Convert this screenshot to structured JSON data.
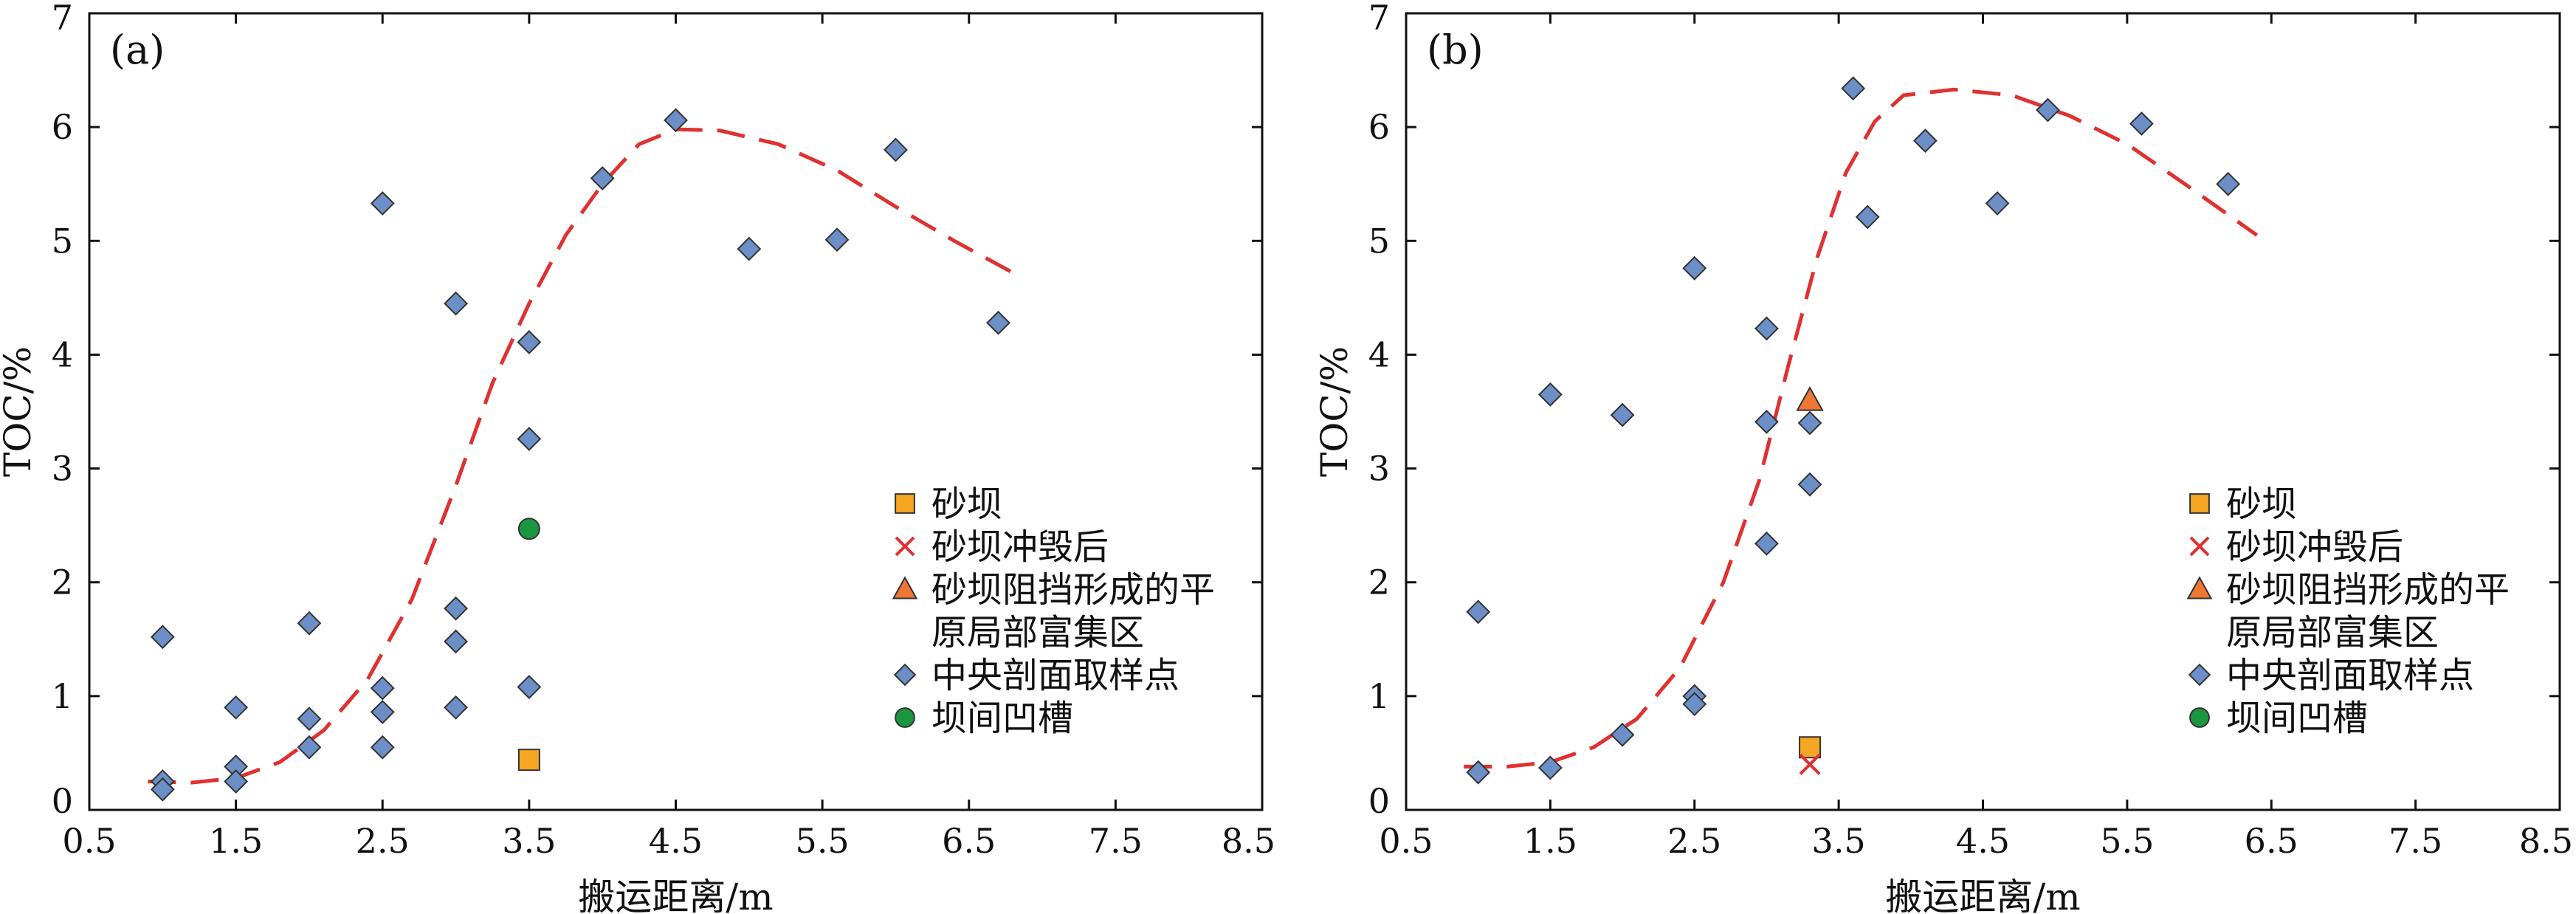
{
  "chart_data": [
    {
      "type": "scatter",
      "panel_label": "(a)",
      "xlabel": "搬运距离/m",
      "ylabel": "TOC/%",
      "xlim": [
        0.5,
        8.5
      ],
      "ylim": [
        0,
        7
      ],
      "xticks": [
        "0.5",
        "1.5",
        "2.5",
        "3.5",
        "4.5",
        "5.5",
        "6.5",
        "7.5",
        "8.5"
      ],
      "yticks": [
        "0",
        "1",
        "2",
        "3",
        "4",
        "5",
        "6",
        "7"
      ],
      "grid": false,
      "legend_position": "bottom-right",
      "series": [
        {
          "name": "砂坝",
          "marker": "square",
          "color": "#f5a623",
          "points": [
            [
              3.5,
              0.44
            ]
          ]
        },
        {
          "name": "砂坝冲毁后",
          "marker": "x",
          "color": "#e03030",
          "points": []
        },
        {
          "name": "砂坝阻挡形成的平原局部富集区",
          "marker": "triangle",
          "color": "#ee7733",
          "points": []
        },
        {
          "name": "中央剖面取样点",
          "marker": "diamond",
          "color": "#6d8fc7",
          "points": [
            [
              1.0,
              1.52
            ],
            [
              1.0,
              0.25
            ],
            [
              1.0,
              0.18
            ],
            [
              1.5,
              0.9
            ],
            [
              1.5,
              0.38
            ],
            [
              1.5,
              0.25
            ],
            [
              2.0,
              1.64
            ],
            [
              2.0,
              0.8
            ],
            [
              2.0,
              0.55
            ],
            [
              2.5,
              5.33
            ],
            [
              2.5,
              1.07
            ],
            [
              2.5,
              0.86
            ],
            [
              2.5,
              0.55
            ],
            [
              3.0,
              4.45
            ],
            [
              3.0,
              1.77
            ],
            [
              3.0,
              1.48
            ],
            [
              3.0,
              0.9
            ],
            [
              3.5,
              4.11
            ],
            [
              3.5,
              3.26
            ],
            [
              3.5,
              1.08
            ],
            [
              4.0,
              5.55
            ],
            [
              4.5,
              6.06
            ],
            [
              5.0,
              4.93
            ],
            [
              5.6,
              5.01
            ],
            [
              6.0,
              5.8
            ],
            [
              6.7,
              4.28
            ]
          ]
        },
        {
          "name": "坝间凹槽",
          "marker": "circle",
          "color": "#1a9641",
          "points": [
            [
              3.5,
              2.47
            ]
          ]
        }
      ],
      "trend_line": {
        "style": "dashed",
        "color": "#e03030",
        "points": [
          [
            0.9,
            0.25
          ],
          [
            1.2,
            0.24
          ],
          [
            1.5,
            0.28
          ],
          [
            1.8,
            0.42
          ],
          [
            2.1,
            0.7
          ],
          [
            2.4,
            1.15
          ],
          [
            2.7,
            1.85
          ],
          [
            3.0,
            2.85
          ],
          [
            3.25,
            3.75
          ],
          [
            3.5,
            4.45
          ],
          [
            3.75,
            5.05
          ],
          [
            4.0,
            5.5
          ],
          [
            4.25,
            5.85
          ],
          [
            4.5,
            5.98
          ],
          [
            4.8,
            5.97
          ],
          [
            5.2,
            5.85
          ],
          [
            5.6,
            5.62
          ],
          [
            6.0,
            5.3
          ],
          [
            6.4,
            5.0
          ],
          [
            6.8,
            4.72
          ]
        ]
      }
    },
    {
      "type": "scatter",
      "panel_label": "(b)",
      "xlabel": "搬运距离/m",
      "ylabel": "TOC/%",
      "xlim": [
        0.5,
        8.5
      ],
      "ylim": [
        0,
        7
      ],
      "xticks": [
        "0.5",
        "1.5",
        "2.5",
        "3.5",
        "4.5",
        "5.5",
        "6.5",
        "7.5",
        "8.5"
      ],
      "yticks": [
        "0",
        "1",
        "2",
        "3",
        "4",
        "5",
        "6",
        "7"
      ],
      "grid": false,
      "legend_position": "bottom-right",
      "series": [
        {
          "name": "砂坝",
          "marker": "square",
          "color": "#f5a623",
          "points": [
            [
              3.3,
              0.55
            ]
          ]
        },
        {
          "name": "砂坝冲毁后",
          "marker": "x",
          "color": "#e03030",
          "points": [
            [
              3.3,
              0.4
            ]
          ]
        },
        {
          "name": "砂坝阻挡形成的平原局部富集区",
          "marker": "triangle",
          "color": "#ee7733",
          "points": [
            [
              3.3,
              3.6
            ]
          ]
        },
        {
          "name": "中央剖面取样点",
          "marker": "diamond",
          "color": "#6d8fc7",
          "points": [
            [
              1.0,
              1.74
            ],
            [
              1.0,
              0.33
            ],
            [
              1.5,
              3.65
            ],
            [
              1.5,
              0.37
            ],
            [
              2.0,
              3.47
            ],
            [
              2.0,
              0.66
            ],
            [
              2.5,
              4.76
            ],
            [
              2.5,
              1.0
            ],
            [
              2.5,
              0.93
            ],
            [
              3.0,
              4.23
            ],
            [
              3.0,
              3.41
            ],
            [
              3.0,
              2.34
            ],
            [
              3.3,
              3.4
            ],
            [
              3.3,
              2.86
            ],
            [
              3.6,
              6.34
            ],
            [
              3.7,
              5.21
            ],
            [
              4.1,
              5.88
            ],
            [
              4.6,
              5.33
            ],
            [
              4.95,
              6.15
            ],
            [
              5.6,
              6.03
            ],
            [
              6.2,
              5.5
            ]
          ]
        },
        {
          "name": "坝间凹槽",
          "marker": "circle",
          "color": "#1a9641",
          "points": []
        }
      ],
      "trend_line": {
        "style": "dashed",
        "color": "#e03030",
        "points": [
          [
            0.9,
            0.38
          ],
          [
            1.2,
            0.38
          ],
          [
            1.5,
            0.42
          ],
          [
            1.8,
            0.55
          ],
          [
            2.1,
            0.8
          ],
          [
            2.4,
            1.25
          ],
          [
            2.7,
            2.0
          ],
          [
            2.95,
            2.9
          ],
          [
            3.15,
            3.9
          ],
          [
            3.35,
            4.85
          ],
          [
            3.55,
            5.6
          ],
          [
            3.75,
            6.05
          ],
          [
            3.95,
            6.28
          ],
          [
            4.3,
            6.33
          ],
          [
            4.7,
            6.28
          ],
          [
            5.1,
            6.1
          ],
          [
            5.5,
            5.85
          ],
          [
            5.9,
            5.5
          ],
          [
            6.4,
            5.05
          ]
        ]
      }
    }
  ]
}
